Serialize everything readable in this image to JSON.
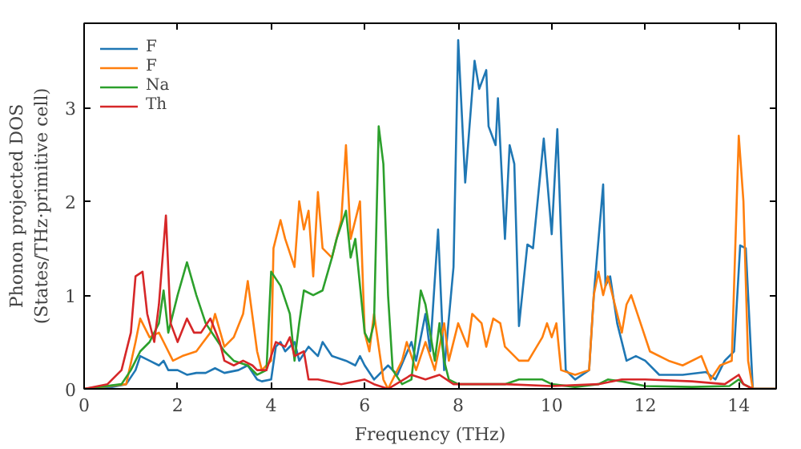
{
  "chart_data": {
    "type": "line",
    "xlabel": "Frequency (THz)",
    "ylabel": "Phonon projected DOS\n(States/THz·primitive cell)",
    "xlim": [
      0,
      14.8
    ],
    "ylim": [
      0,
      3.9
    ],
    "xticks": [
      0,
      2,
      4,
      6,
      8,
      10,
      12,
      14
    ],
    "yticks": [
      0,
      1,
      2,
      3
    ],
    "grid": false,
    "legend": "top left",
    "marker": "none",
    "line_style": "solid",
    "series": [
      {
        "name": "F",
        "color": "#1f77b4",
        "x": [
          0,
          0.5,
          0.9,
          1.1,
          1.2,
          1.4,
          1.6,
          1.7,
          1.8,
          2.0,
          2.2,
          2.4,
          2.6,
          2.8,
          3.0,
          3.3,
          3.5,
          3.7,
          3.8,
          4.0,
          4.1,
          4.2,
          4.3,
          4.5,
          4.6,
          4.8,
          5.0,
          5.1,
          5.3,
          5.6,
          5.8,
          5.9,
          6.0,
          6.2,
          6.5,
          6.7,
          7.0,
          7.1,
          7.3,
          7.4,
          7.57,
          7.7,
          7.9,
          8.0,
          8.15,
          8.35,
          8.45,
          8.6,
          8.65,
          8.8,
          8.85,
          9.0,
          9.1,
          9.2,
          9.3,
          9.48,
          9.6,
          9.83,
          10.0,
          10.12,
          10.3,
          10.5,
          10.8,
          10.9,
          11.1,
          11.15,
          11.25,
          11.4,
          11.6,
          11.8,
          12.0,
          12.3,
          12.8,
          13.3,
          13.5,
          13.7,
          13.9,
          14.03,
          14.15,
          14.3,
          14.8
        ],
        "values": [
          0,
          0.01,
          0.05,
          0.2,
          0.35,
          0.3,
          0.25,
          0.3,
          0.2,
          0.2,
          0.15,
          0.17,
          0.17,
          0.22,
          0.17,
          0.2,
          0.25,
          0.1,
          0.08,
          0.1,
          0.45,
          0.5,
          0.4,
          0.5,
          0.3,
          0.45,
          0.35,
          0.5,
          0.35,
          0.3,
          0.25,
          0.35,
          0.25,
          0.1,
          0.25,
          0.15,
          0.5,
          0.3,
          0.8,
          0.4,
          1.7,
          0.2,
          1.3,
          3.72,
          2.2,
          3.5,
          3.2,
          3.4,
          2.8,
          2.6,
          3.1,
          1.6,
          2.6,
          2.4,
          0.67,
          1.54,
          1.5,
          2.67,
          1.65,
          2.77,
          0.2,
          0.1,
          0.2,
          1.0,
          2.18,
          1.1,
          1.2,
          0.7,
          0.3,
          0.35,
          0.3,
          0.15,
          0.15,
          0.18,
          0.1,
          0.3,
          0.4,
          1.53,
          1.5,
          0,
          0
        ]
      },
      {
        "name": "F",
        "color": "#ff7f0e",
        "x": [
          0,
          0.9,
          1.1,
          1.2,
          1.4,
          1.6,
          1.7,
          1.9,
          2.1,
          2.4,
          2.7,
          2.8,
          3.0,
          3.2,
          3.4,
          3.5,
          3.7,
          3.8,
          4.0,
          4.05,
          4.2,
          4.3,
          4.5,
          4.6,
          4.7,
          4.8,
          4.9,
          5.0,
          5.1,
          5.3,
          5.5,
          5.6,
          5.7,
          5.9,
          6.0,
          6.1,
          6.2,
          6.4,
          6.5,
          6.8,
          6.9,
          7.1,
          7.3,
          7.5,
          7.7,
          7.8,
          8.0,
          8.2,
          8.3,
          8.5,
          8.6,
          8.75,
          8.9,
          9.0,
          9.3,
          9.5,
          9.8,
          9.9,
          10.0,
          10.1,
          10.2,
          10.5,
          10.8,
          10.9,
          11.0,
          11.1,
          11.2,
          11.4,
          11.5,
          11.6,
          11.7,
          11.9,
          12.1,
          12.5,
          12.8,
          13.2,
          13.4,
          13.6,
          13.85,
          14.0,
          14.1,
          14.2,
          14.3,
          14.8
        ],
        "values": [
          0,
          0.05,
          0.5,
          0.75,
          0.55,
          0.6,
          0.5,
          0.3,
          0.35,
          0.4,
          0.6,
          0.8,
          0.45,
          0.55,
          0.8,
          1.15,
          0.4,
          0.2,
          0.3,
          1.5,
          1.8,
          1.6,
          1.3,
          2.0,
          1.7,
          1.9,
          1.2,
          2.1,
          1.5,
          1.4,
          1.8,
          2.6,
          1.6,
          2.0,
          0.6,
          0.4,
          0.8,
          0.1,
          0,
          0.3,
          0.5,
          0.2,
          0.5,
          0.2,
          0.7,
          0.3,
          0.7,
          0.45,
          0.8,
          0.7,
          0.45,
          0.75,
          0.7,
          0.45,
          0.3,
          0.3,
          0.55,
          0.7,
          0.55,
          0.7,
          0.2,
          0.15,
          0.2,
          1.0,
          1.25,
          1.0,
          1.2,
          0.8,
          0.6,
          0.9,
          1.0,
          0.7,
          0.4,
          0.3,
          0.25,
          0.35,
          0.1,
          0.25,
          0.3,
          2.7,
          2.0,
          0.3,
          0,
          0
        ]
      },
      {
        "name": "Na",
        "color": "#2ca02c",
        "x": [
          0,
          0.8,
          1.0,
          1.2,
          1.4,
          1.6,
          1.7,
          1.8,
          2.0,
          2.2,
          2.4,
          2.6,
          2.8,
          3.0,
          3.2,
          3.5,
          3.7,
          3.9,
          4.0,
          4.2,
          4.4,
          4.5,
          4.6,
          4.7,
          4.9,
          5.1,
          5.3,
          5.4,
          5.6,
          5.7,
          5.8,
          6.0,
          6.1,
          6.2,
          6.3,
          6.4,
          6.5,
          6.6,
          6.8,
          7.0,
          7.2,
          7.3,
          7.5,
          7.6,
          7.7,
          7.8,
          8.0,
          9.0,
          9.3,
          9.6,
          9.8,
          10.0,
          10.5,
          11.0,
          11.2,
          11.5,
          12.0,
          13.0,
          13.8,
          14.0,
          14.1,
          14.3,
          14.8
        ],
        "values": [
          0,
          0.05,
          0.2,
          0.4,
          0.5,
          0.7,
          1.05,
          0.6,
          1.0,
          1.35,
          1.0,
          0.7,
          0.55,
          0.4,
          0.3,
          0.25,
          0.15,
          0.2,
          1.25,
          1.1,
          0.8,
          0.3,
          0.7,
          1.05,
          1.0,
          1.05,
          1.4,
          1.6,
          1.9,
          1.4,
          1.6,
          0.6,
          0.5,
          0.7,
          2.8,
          2.4,
          1.0,
          0.2,
          0.05,
          0.1,
          1.05,
          0.9,
          0.3,
          0.7,
          0.3,
          0.1,
          0.05,
          0.05,
          0.1,
          0.1,
          0.1,
          0.05,
          0.02,
          0.05,
          0.1,
          0.08,
          0.03,
          0.02,
          0.03,
          0.1,
          0.05,
          0,
          0
        ]
      },
      {
        "name": "Th",
        "color": "#d62728",
        "x": [
          0,
          0.5,
          0.8,
          1.0,
          1.1,
          1.25,
          1.35,
          1.5,
          1.6,
          1.75,
          1.85,
          2.0,
          2.2,
          2.35,
          2.5,
          2.7,
          2.9,
          3.0,
          3.2,
          3.4,
          3.6,
          3.7,
          3.9,
          4.1,
          4.3,
          4.4,
          4.5,
          4.7,
          4.8,
          5.0,
          5.5,
          6.0,
          6.2,
          6.5,
          7.0,
          7.3,
          7.6,
          7.9,
          8.5,
          9.0,
          10.0,
          11.0,
          11.5,
          12.0,
          13.0,
          13.7,
          14.0,
          14.1,
          14.3,
          14.8
        ],
        "values": [
          0,
          0.05,
          0.2,
          0.6,
          1.2,
          1.25,
          0.8,
          0.5,
          0.9,
          1.85,
          0.7,
          0.5,
          0.75,
          0.6,
          0.6,
          0.75,
          0.5,
          0.3,
          0.25,
          0.3,
          0.25,
          0.2,
          0.2,
          0.5,
          0.45,
          0.55,
          0.35,
          0.4,
          0.1,
          0.1,
          0.05,
          0.1,
          0.05,
          0,
          0.15,
          0.1,
          0.15,
          0.05,
          0.05,
          0.05,
          0.03,
          0.05,
          0.1,
          0.1,
          0.08,
          0.05,
          0.15,
          0.05,
          0,
          0
        ]
      }
    ]
  }
}
